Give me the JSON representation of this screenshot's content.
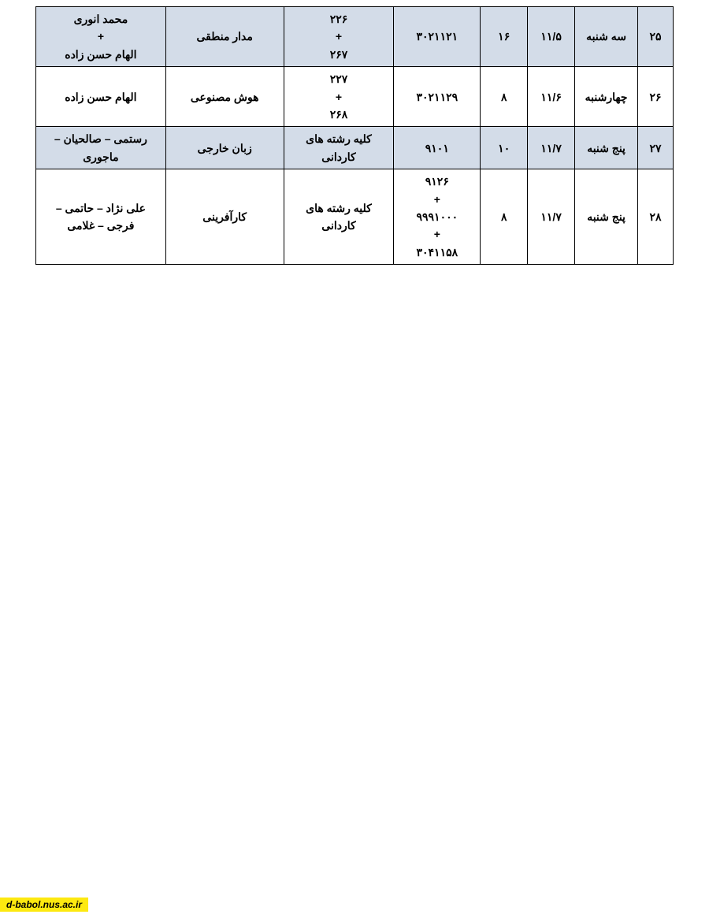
{
  "table": {
    "border_color": "#000000",
    "shaded_bg": "#d3dce8",
    "plain_bg": "#ffffff",
    "font_size": 14,
    "font_weight": "bold",
    "columns": [
      "num",
      "day",
      "date",
      "time",
      "code",
      "group",
      "subject",
      "teacher"
    ],
    "rows": [
      {
        "shaded": true,
        "num": "۲۵",
        "day": "سه شنبه",
        "date": "۱۱/۵",
        "time": "۱۶",
        "code": "۳۰۲۱۱۲۱",
        "group": "۲۲۶\n+\n۲۶۷",
        "subject": "مدار منطقی",
        "teacher": "محمد انوری\n+\nالهام حسن زاده"
      },
      {
        "shaded": false,
        "num": "۲۶",
        "day": "چهارشنبه",
        "date": "۱۱/۶",
        "time": "۸",
        "code": "۳۰۲۱۱۲۹",
        "group": "۲۲۷\n+\n۲۶۸",
        "subject": "هوش مصنوعی",
        "teacher": "الهام حسن زاده"
      },
      {
        "shaded": true,
        "num": "۲۷",
        "day": "پنج شنبه",
        "date": "۱۱/۷",
        "time": "۱۰",
        "code": "۹۱۰۱",
        "group": "کلیه رشته های کاردانی",
        "subject": "زبان خارجی",
        "teacher": "رستمی – صالحیان – ماجوری"
      },
      {
        "shaded": false,
        "num": "۲۸",
        "day": "پنج شنبه",
        "date": "۱۱/۷",
        "time": "۸",
        "code": "۹۱۲۶\n+\n۹۹۹۱۰۰۰\n+\n۳۰۴۱۱۵۸",
        "group": "کلیه رشته های کاردانی",
        "subject": "کارآفرینی",
        "teacher": "علی نژاد – حاتمی – فرجی – غلامی"
      }
    ]
  },
  "footer": {
    "text": "d-babol.nus.ac.ir",
    "bg_color": "#fde910",
    "text_color": "#000000"
  }
}
